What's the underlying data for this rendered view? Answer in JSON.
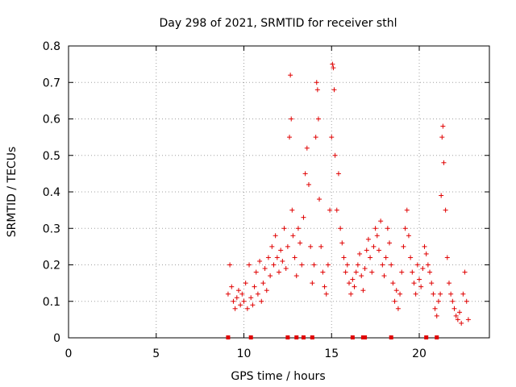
{
  "chart_data": {
    "type": "scatter",
    "title": "Day 298 of 2021, SRMTID for receiver sthl",
    "xlabel": "GPS time / hours",
    "ylabel": "SRMTID / TECUs",
    "xlim": [
      0,
      24
    ],
    "ylim": [
      0,
      0.8
    ],
    "x_ticks": [
      0,
      5,
      10,
      15,
      20
    ],
    "y_ticks": [
      0,
      0.1,
      0.2,
      0.3,
      0.4,
      0.5,
      0.6,
      0.7,
      0.8
    ],
    "x_tick_labels": [
      "0",
      "5",
      "10",
      "15",
      "20"
    ],
    "y_tick_labels": [
      "0",
      "0.1",
      "0.2",
      "0.3",
      "0.4",
      "0.5",
      "0.6",
      "0.7",
      "0.8"
    ],
    "grid": true,
    "marker": "+",
    "color": "#e00000",
    "series": [
      {
        "name": "SRMTID",
        "x": [
          9.1,
          9.2,
          9.3,
          9.4,
          9.5,
          9.6,
          9.7,
          9.8,
          9.9,
          10.0,
          10.1,
          10.2,
          10.3,
          10.4,
          10.5,
          10.6,
          10.7,
          10.8,
          10.9,
          11.0,
          11.1,
          11.2,
          11.3,
          11.4,
          11.5,
          11.6,
          11.7,
          11.8,
          11.9,
          12.0,
          12.1,
          12.2,
          12.3,
          12.4,
          12.5,
          12.6,
          12.65,
          12.7,
          12.75,
          12.8,
          12.9,
          13.0,
          13.1,
          13.2,
          13.3,
          13.4,
          13.5,
          13.6,
          13.7,
          13.8,
          13.9,
          14.0,
          14.1,
          14.15,
          14.2,
          14.25,
          14.3,
          14.4,
          14.5,
          14.6,
          14.7,
          14.8,
          14.9,
          15.0,
          15.05,
          15.1,
          15.15,
          15.2,
          15.3,
          15.4,
          15.5,
          15.6,
          15.7,
          15.8,
          15.9,
          16.0,
          16.1,
          16.2,
          16.3,
          16.4,
          16.5,
          16.6,
          16.7,
          16.8,
          16.9,
          17.0,
          17.1,
          17.2,
          17.3,
          17.4,
          17.5,
          17.6,
          17.7,
          17.8,
          17.9,
          18.0,
          18.1,
          18.2,
          18.3,
          18.4,
          18.5,
          18.6,
          18.7,
          18.8,
          18.9,
          19.0,
          19.1,
          19.2,
          19.3,
          19.4,
          19.5,
          19.6,
          19.7,
          19.8,
          19.9,
          20.0,
          20.1,
          20.2,
          20.3,
          20.4,
          20.5,
          20.6,
          20.7,
          20.8,
          20.9,
          21.0,
          21.1,
          21.2,
          21.25,
          21.3,
          21.35,
          21.4,
          21.5,
          21.6,
          21.7,
          21.8,
          21.9,
          22.0,
          22.1,
          22.2,
          22.3,
          22.4,
          22.5,
          22.6,
          22.7,
          22.8
        ],
        "y": [
          0.12,
          0.2,
          0.14,
          0.1,
          0.08,
          0.11,
          0.13,
          0.09,
          0.12,
          0.1,
          0.15,
          0.08,
          0.2,
          0.11,
          0.09,
          0.14,
          0.18,
          0.12,
          0.21,
          0.1,
          0.15,
          0.19,
          0.13,
          0.22,
          0.17,
          0.25,
          0.2,
          0.28,
          0.22,
          0.18,
          0.24,
          0.21,
          0.3,
          0.19,
          0.25,
          0.55,
          0.72,
          0.6,
          0.35,
          0.28,
          0.22,
          0.17,
          0.3,
          0.26,
          0.2,
          0.33,
          0.45,
          0.52,
          0.42,
          0.25,
          0.15,
          0.2,
          0.55,
          0.7,
          0.68,
          0.6,
          0.38,
          0.25,
          0.18,
          0.14,
          0.12,
          0.2,
          0.35,
          0.55,
          0.75,
          0.74,
          0.68,
          0.5,
          0.35,
          0.45,
          0.3,
          0.26,
          0.22,
          0.18,
          0.2,
          0.15,
          0.12,
          0.16,
          0.14,
          0.18,
          0.2,
          0.23,
          0.17,
          0.13,
          0.19,
          0.24,
          0.27,
          0.22,
          0.18,
          0.25,
          0.3,
          0.28,
          0.24,
          0.32,
          0.2,
          0.17,
          0.22,
          0.3,
          0.26,
          0.2,
          0.15,
          0.1,
          0.13,
          0.08,
          0.12,
          0.18,
          0.25,
          0.3,
          0.35,
          0.28,
          0.22,
          0.18,
          0.15,
          0.12,
          0.2,
          0.16,
          0.14,
          0.19,
          0.25,
          0.23,
          0.2,
          0.18,
          0.15,
          0.12,
          0.08,
          0.06,
          0.1,
          0.12,
          0.39,
          0.55,
          0.58,
          0.48,
          0.35,
          0.22,
          0.15,
          0.12,
          0.1,
          0.08,
          0.06,
          0.05,
          0.07,
          0.04,
          0.12,
          0.18,
          0.1,
          0.05
        ]
      }
    ],
    "bottom_flags_x": [
      9.1,
      10.4,
      12.5,
      13.0,
      13.4,
      13.9,
      16.2,
      16.8,
      16.9,
      18.4,
      20.4,
      21.0
    ]
  }
}
